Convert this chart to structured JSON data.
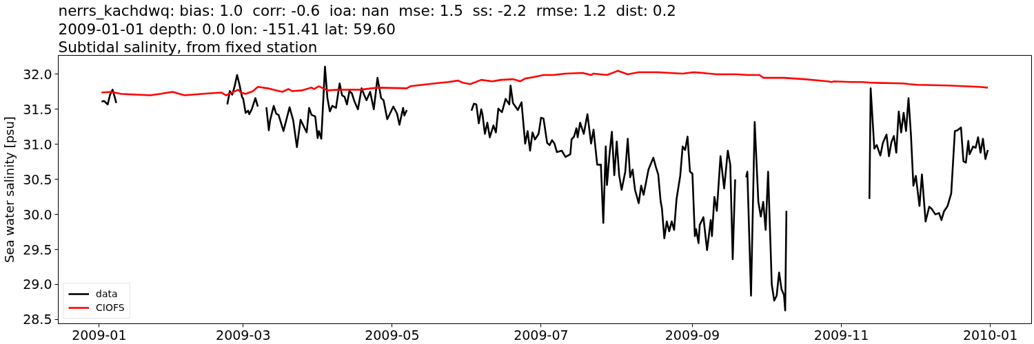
{
  "chart_data": {
    "type": "line",
    "title": "nerrs_kachdwq: bias: 1.0  corr: -0.6  ioa: nan  mse: 1.5  ss: -2.2  rmse: 1.2  dist: 0.2",
    "subtitle": "2009-01-01 depth: 0.0 lon: -151.41 lat: 59.60\nSubtidal salinity, from fixed station",
    "ylabel": "Sea water salinity [psu]",
    "xlim": [
      "2008-12-15T06:00",
      "2010-01-17T22:00"
    ],
    "xticks": [
      "2009-01",
      "2009-03",
      "2009-05",
      "2009-07",
      "2009-09",
      "2009-11",
      "2010-01"
    ],
    "ylim": [
      28.44,
      32.27
    ],
    "yticks": [
      28.5,
      {
        "value": 29,
        "label": "29.0"
      },
      29.5,
      {
        "value": 30,
        "label": "30.0"
      },
      30.5,
      {
        "value": 31,
        "label": "31.0"
      },
      31.5,
      {
        "value": 32,
        "label": "32.0"
      }
    ],
    "grid": false,
    "legend": "bottom left",
    "series": [
      {
        "name": "data",
        "color": "#000000",
        "x": [
          "2009-01-02",
          "2009-01-03",
          "2009-01-04T12:00",
          "2009-01-05T12:00",
          "2009-01-06T12:00",
          "2009-01-07T12:00",
          "2009-01-08",
          "2009-01-30",
          "2009-02-22T12:00",
          "2009-02-23T12:00",
          "2009-02-24T12:00",
          "2009-02-25T12:00",
          "2009-02-26T12:00",
          "2009-02-27T12:00",
          "2009-02-28T12:00",
          "2009-03-01",
          "2009-03-02",
          "2009-03-03",
          "2009-03-03T12:00",
          "2009-03-04T12:00",
          "2009-03-06",
          "2009-03-07",
          "2009-03-09",
          "2009-03-10T12:00",
          "2009-03-11T12:00",
          "2009-03-12",
          "2009-03-13T12:00",
          "2009-03-14T12:00",
          "2009-03-15T12:00",
          "2009-03-17T12:00",
          "2009-03-20",
          "2009-03-21T12:00",
          "2009-03-23",
          "2009-03-24T12:00",
          "2009-03-27",
          "2009-03-28",
          "2009-03-29",
          "2009-03-30T12:00",
          "2009-03-31T12:00",
          "2009-04-01",
          "2009-04-02",
          "2009-04-03T12:00",
          "2009-04-04T12:00",
          "2009-04-05T12:00",
          "2009-04-06T12:00",
          "2009-04-08",
          "2009-04-09T12:00",
          "2009-04-10T12:00",
          "2009-04-11T12:00",
          "2009-04-12T12:00",
          "2009-04-13T12:00",
          "2009-04-14T12:00",
          "2009-04-15T12:00",
          "2009-04-17",
          "2009-04-18T12:00",
          "2009-04-19T12:00",
          "2009-04-20T12:00",
          "2009-04-22",
          "2009-04-23T12:00",
          "2009-04-25",
          "2009-04-26T12:00",
          "2009-04-27T12:00",
          "2009-04-29",
          "2009-04-30",
          "2009-05-01T12:00",
          "2009-05-03",
          "2009-05-04",
          "2009-05-05T12:00",
          "2009-05-06",
          "2009-05-07",
          "2009-05-20",
          "2009-06-02T12:00",
          "2009-06-03T12:00",
          "2009-06-04T12:00",
          "2009-06-05T12:00",
          "2009-06-06T12:00",
          "2009-06-07",
          "2009-06-08",
          "2009-06-09",
          "2009-06-10",
          "2009-06-11T12:00",
          "2009-06-12T12:00",
          "2009-06-13T12:00",
          "2009-06-15",
          "2009-06-16T12:00",
          "2009-06-18",
          "2009-06-18T12:00",
          "2009-06-19T12:00",
          "2009-06-21T12:00",
          "2009-06-23",
          "2009-06-24T12:00",
          "2009-06-25T12:00",
          "2009-06-26T12:00",
          "2009-06-27T12:00",
          "2009-06-28T12:00",
          "2009-06-30",
          "2009-07-01",
          "2009-07-02",
          "2009-07-03T12:00",
          "2009-07-04T12:00",
          "2009-07-05T12:00",
          "2009-07-06T12:00",
          "2009-07-07T12:00",
          "2009-07-09T12:00",
          "2009-07-11",
          "2009-07-13",
          "2009-07-13T12:00",
          "2009-07-14T12:00",
          "2009-07-15T12:00",
          "2009-07-16",
          "2009-07-17",
          "2009-07-18T12:00",
          "2009-07-20",
          "2009-07-21T12:00",
          "2009-07-22T12:00",
          "2009-07-24",
          "2009-07-25T12:00",
          "2009-07-26T12:00",
          "2009-07-27T12:00",
          "2009-07-28",
          "2009-07-29",
          "2009-07-30",
          "2009-07-31",
          "2009-08-01",
          "2009-08-02",
          "2009-08-03",
          "2009-08-04T12:00",
          "2009-08-05T12:00",
          "2009-08-06T12:00",
          "2009-08-07T12:00",
          "2009-08-08T12:00",
          "2009-08-10",
          "2009-08-11",
          "2009-08-12",
          "2009-08-12T12:00",
          "2009-08-14",
          "2009-08-16",
          "2009-08-17",
          "2009-08-18",
          "2009-08-19",
          "2009-08-19T12:00",
          "2009-08-20T12:00",
          "2009-08-21T12:00",
          "2009-08-22T12:00",
          "2009-08-23T12:00",
          "2009-08-24T12:00",
          "2009-08-25T12:00",
          "2009-08-27",
          "2009-08-28",
          "2009-08-29",
          "2009-08-30",
          "2009-08-31",
          "2009-09-01",
          "2009-09-02",
          "2009-09-02T12:00",
          "2009-09-03T12:00",
          "2009-09-04",
          "2009-09-05T12:00",
          "2009-09-07",
          "2009-09-08T12:00",
          "2009-09-09",
          "2009-09-10",
          "2009-09-11",
          "2009-09-12T12:00",
          "2009-09-14",
          "2009-09-15T12:00",
          "2009-09-16T12:00",
          "2009-09-17T12:00",
          "2009-09-18T12:00",
          "2009-09-20T12:00",
          "2009-09-23",
          "2009-09-23T12:00",
          "2009-09-25",
          "2009-09-26T12:00",
          "2009-09-28",
          "2009-09-29",
          "2009-09-30",
          "2009-10-01",
          "2009-10-02",
          "2009-10-03T12:00",
          "2009-10-04T12:00",
          "2009-10-05T12:00",
          "2009-10-06T12:00",
          "2009-10-07T12:00",
          "2009-10-08T12:00",
          "2009-10-09",
          "2009-10-09T12:00",
          "2009-10-30",
          "2009-11-12T12:00",
          "2009-11-13",
          "2009-11-14T12:00",
          "2009-11-15T12:00",
          "2009-11-17",
          "2009-11-18",
          "2009-11-19T12:00",
          "2009-11-20T12:00",
          "2009-11-21T12:00",
          "2009-11-22T12:00",
          "2009-11-23T12:00",
          "2009-11-24T12:00",
          "2009-11-25T12:00",
          "2009-11-26T12:00",
          "2009-11-27T12:00",
          "2009-11-28T12:00",
          "2009-11-29T12:00",
          "2009-11-30T12:00",
          "2009-12-01T12:00",
          "2009-12-03",
          "2009-12-04",
          "2009-12-05T12:00",
          "2009-12-07",
          "2009-12-08",
          "2009-12-09T12:00",
          "2009-12-11",
          "2009-12-12",
          "2009-12-13",
          "2009-12-14T12:00",
          "2009-12-16",
          "2009-12-17T12:00",
          "2009-12-18T12:00",
          "2009-12-20",
          "2009-12-21",
          "2009-12-22",
          "2009-12-23",
          "2009-12-23T12:00",
          "2009-12-25",
          "2009-12-26",
          "2009-12-27",
          "2009-12-28",
          "2009-12-29",
          "2009-12-30",
          "2009-12-31"
        ],
        "values": [
          31.61,
          31.62,
          31.57,
          31.71,
          31.78,
          31.66,
          31.59,
          null,
          31.57,
          31.76,
          31.71,
          31.83,
          31.99,
          31.85,
          31.68,
          31.65,
          31.45,
          31.48,
          31.43,
          31.5,
          31.66,
          31.54,
          null,
          31.53,
          31.2,
          31.34,
          31.55,
          31.44,
          31.42,
          31.19,
          31.53,
          31.34,
          30.96,
          31.35,
          31.17,
          31.52,
          31.42,
          31.4,
          31.09,
          31.19,
          31.08,
          32.11,
          31.66,
          31.47,
          31.55,
          31.52,
          31.87,
          31.7,
          31.68,
          31.57,
          31.76,
          31.73,
          31.62,
          31.5,
          31.8,
          31.71,
          31.63,
          31.75,
          31.5,
          31.95,
          31.66,
          31.63,
          31.36,
          31.43,
          31.54,
          31.44,
          31.28,
          31.52,
          31.41,
          31.49,
          null,
          31.48,
          31.58,
          31.57,
          31.3,
          31.5,
          31.43,
          31.15,
          31.31,
          31.1,
          31.27,
          31.17,
          31.51,
          31.46,
          31.65,
          31.57,
          31.84,
          31.59,
          31.49,
          31.6,
          31.01,
          31.19,
          30.91,
          31.17,
          31.07,
          31.15,
          31.38,
          31.37,
          31.02,
          30.99,
          31.06,
          31.01,
          30.89,
          30.91,
          30.82,
          30.86,
          31.07,
          31.11,
          31.23,
          31.1,
          31.31,
          31.15,
          31.43,
          31.01,
          31.21,
          30.71,
          30.71,
          29.88,
          30.97,
          30.42,
          30.84,
          31.18,
          30.56,
          31.04,
          30.56,
          30.35,
          30.61,
          31.08,
          30.53,
          30.64,
          30.35,
          30.16,
          30.41,
          30.28,
          30.37,
          30.64,
          30.81,
          30.68,
          30.57,
          30.18,
          30.09,
          29.66,
          29.9,
          29.76,
          29.9,
          29.78,
          30.22,
          30.55,
          30.97,
          30.92,
          31.11,
          30.61,
          30.58,
          29.69,
          29.79,
          29.59,
          29.85,
          29.96,
          29.49,
          29.92,
          29.69,
          30.25,
          30.05,
          30.83,
          30.37,
          30.91,
          30.71,
          29.36,
          30.5,
          null,
          30.53,
          30.61,
          28.84,
          31.32,
          30.18,
          29.97,
          30.18,
          29.78,
          30.61,
          29.0,
          28.77,
          28.84,
          29.17,
          28.93,
          28.85,
          28.63,
          30.05,
          null,
          30.22,
          31.8,
          30.94,
          30.99,
          30.84,
          31.02,
          31.14,
          30.83,
          31.03,
          31.12,
          30.88,
          31.47,
          31.17,
          31.45,
          31.19,
          31.66,
          31.14,
          30.41,
          30.55,
          30.12,
          30.57,
          29.9,
          30.11,
          30.08,
          30.0,
          30.02,
          29.92,
          30.04,
          30.12,
          30.3,
          31.19,
          31.2,
          31.24,
          30.76,
          30.74,
          31.05,
          30.86,
          30.97,
          30.95,
          31.1,
          30.88,
          31.08,
          30.79,
          30.92
        ]
      },
      {
        "name": "CIOFS",
        "color": "#ff0000",
        "x": [
          "2009-01-02",
          "2009-01-06",
          "2009-01-10",
          "2009-01-22",
          "2009-01-26",
          "2009-01-31",
          "2009-02-05",
          "2009-02-12",
          "2009-02-20",
          "2009-02-22",
          "2009-02-27",
          "2009-02-28",
          "2009-03-02",
          "2009-03-05",
          "2009-03-07",
          "2009-03-11",
          "2009-03-17",
          "2009-03-19T12:00",
          "2009-03-21",
          "2009-03-25",
          "2009-03-29",
          "2009-03-30",
          "2009-04-01",
          "2009-04-04T12:00",
          "2009-04-09",
          "2009-04-18",
          "2009-04-25",
          "2009-05-07",
          "2009-05-08T12:00",
          "2009-05-16",
          "2009-05-21",
          "2009-05-24",
          "2009-05-28",
          "2009-05-30",
          "2009-06-02",
          "2009-06-06T12:00",
          "2009-06-11",
          "2009-06-14T12:00",
          "2009-06-19T12:00",
          "2009-06-22T12:00",
          "2009-06-24T12:00",
          "2009-06-28",
          "2009-07-02",
          "2009-07-06",
          "2009-07-11",
          "2009-07-18",
          "2009-07-21T12:00",
          "2009-07-22T12:00",
          "2009-07-28",
          "2009-08-01T12:00",
          "2009-08-05T12:00",
          "2009-08-10",
          "2009-08-18",
          "2009-08-22T12:00",
          "2009-08-28",
          "2009-09-01T12:00",
          "2009-09-05",
          "2009-09-11",
          "2009-09-19",
          "2009-09-23T12:00",
          "2009-09-28T12:00",
          "2009-09-30",
          "2009-10-08T12:00",
          "2009-10-17",
          "2009-10-26T12:00",
          "2009-10-28",
          "2009-10-29",
          "2009-11-05",
          "2009-11-09T12:00",
          "2009-11-13T12:00",
          "2009-11-26T12:00",
          "2009-11-28T12:00",
          "2009-12-02",
          "2009-12-14T12:00",
          "2009-12-27T12:00",
          "2009-12-31"
        ],
        "values": [
          31.74,
          31.75,
          31.72,
          31.7,
          31.72,
          31.75,
          31.7,
          31.72,
          31.74,
          31.7,
          31.78,
          31.74,
          31.72,
          31.76,
          31.82,
          31.8,
          31.75,
          31.79,
          31.76,
          31.77,
          31.81,
          31.79,
          31.83,
          31.77,
          31.78,
          31.78,
          31.81,
          31.8,
          31.83,
          31.86,
          31.88,
          31.89,
          31.91,
          31.88,
          31.86,
          31.92,
          31.9,
          31.92,
          31.93,
          31.9,
          31.94,
          31.96,
          31.99,
          31.99,
          32.01,
          32.02,
          31.99,
          32.01,
          31.99,
          32.05,
          32.0,
          32.03,
          32.03,
          32.02,
          32.01,
          32.03,
          32.02,
          32.0,
          32.0,
          31.99,
          31.99,
          31.95,
          31.95,
          31.93,
          31.9,
          31.89,
          31.9,
          31.89,
          31.89,
          31.88,
          31.87,
          31.86,
          31.85,
          31.84,
          31.82,
          31.81
        ]
      }
    ]
  }
}
